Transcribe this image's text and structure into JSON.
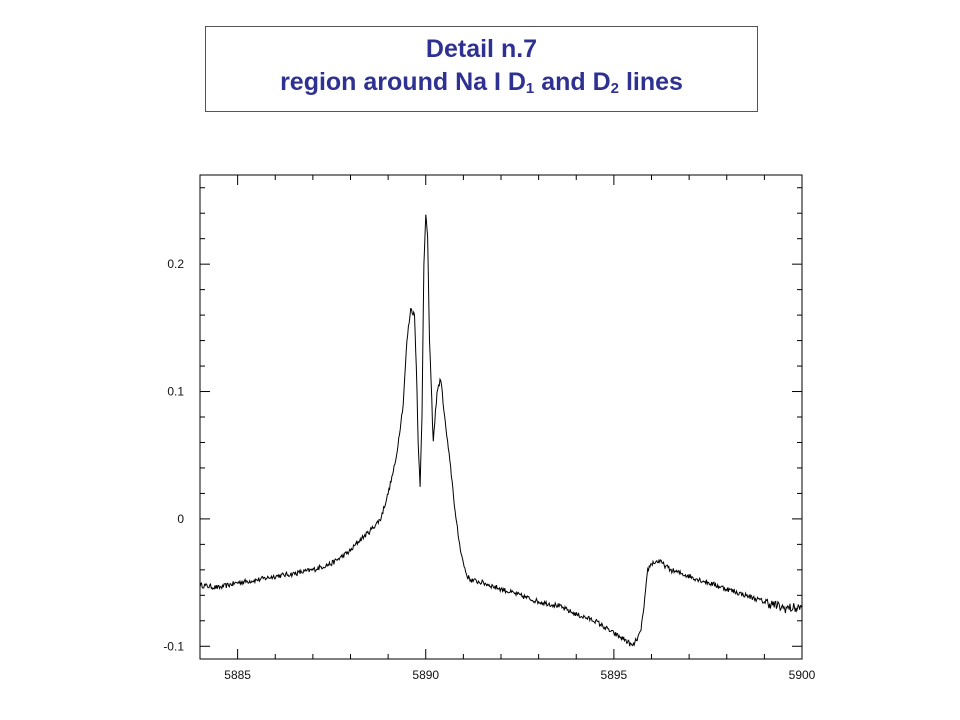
{
  "title": {
    "line1": "Detail n.7",
    "line2_prefix": "region around Na I D",
    "d1_sub": "1",
    "line2_mid": " and D",
    "d2_sub": "2",
    "line2_suffix": " lines",
    "color": "#2e3192"
  },
  "chart_data": {
    "type": "line",
    "title": "Detail n.7 region around Na I D1 and D2 lines",
    "xlabel": "",
    "ylabel": "",
    "xlim": [
      5884,
      5900
    ],
    "ylim": [
      -0.11,
      0.27
    ],
    "x_ticks": [
      5885,
      5890,
      5895,
      5900
    ],
    "x_tick_labels": [
      "5885",
      "5890",
      "5895",
      "5900"
    ],
    "y_ticks": [
      -0.1,
      0,
      0.1,
      0.2
    ],
    "y_tick_labels": [
      "-0.1",
      "0",
      "0.1",
      "0.2"
    ],
    "grid": false,
    "line_color": "#000000",
    "series": [
      {
        "x": [
          5884.0,
          5884.5,
          5885.0,
          5885.5,
          5886.0,
          5886.5,
          5887.0,
          5887.5,
          5888.0,
          5888.2,
          5888.5,
          5888.8,
          5889.0,
          5889.2,
          5889.4,
          5889.5,
          5889.6,
          5889.7,
          5889.75,
          5889.8,
          5889.85,
          5889.9,
          5889.95,
          5890.0,
          5890.05,
          5890.1,
          5890.2,
          5890.3,
          5890.4,
          5890.5,
          5890.6,
          5890.7,
          5890.8,
          5890.9,
          5891.0,
          5891.1,
          5891.2,
          5891.5,
          5892.0,
          5892.5,
          5893.0,
          5893.5,
          5894.0,
          5894.5,
          5895.0,
          5895.3,
          5895.5,
          5895.7,
          5895.8,
          5895.9,
          5896.0,
          5896.2,
          5896.5,
          5897.0,
          5897.5,
          5898.0,
          5898.5,
          5899.0,
          5899.5,
          5900.0
        ],
        "y": [
          -0.052,
          -0.054,
          -0.05,
          -0.048,
          -0.045,
          -0.043,
          -0.04,
          -0.035,
          -0.025,
          -0.018,
          -0.01,
          0.0,
          0.02,
          0.045,
          0.09,
          0.14,
          0.165,
          0.16,
          0.12,
          0.06,
          0.024,
          0.08,
          0.2,
          0.24,
          0.22,
          0.14,
          0.06,
          0.1,
          0.11,
          0.08,
          0.055,
          0.03,
          0.0,
          -0.02,
          -0.035,
          -0.045,
          -0.048,
          -0.05,
          -0.055,
          -0.06,
          -0.065,
          -0.068,
          -0.075,
          -0.08,
          -0.09,
          -0.095,
          -0.1,
          -0.09,
          -0.07,
          -0.04,
          -0.035,
          -0.033,
          -0.04,
          -0.045,
          -0.05,
          -0.055,
          -0.06,
          -0.065,
          -0.07,
          -0.07
        ]
      }
    ]
  }
}
